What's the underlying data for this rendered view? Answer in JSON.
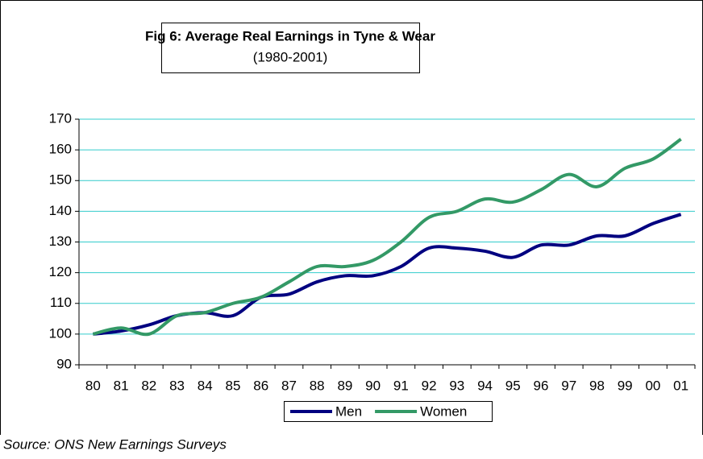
{
  "chart_data": {
    "type": "line",
    "title": "Fig 6: Average Real Earnings in Tyne & Wear",
    "subtitle": "(1980-2001)",
    "source": "Source: ONS New Earnings Surveys",
    "categories": [
      "80",
      "81",
      "82",
      "83",
      "84",
      "85",
      "86",
      "87",
      "88",
      "89",
      "90",
      "91",
      "92",
      "93",
      "94",
      "95",
      "96",
      "97",
      "98",
      "99",
      "00",
      "01"
    ],
    "series": [
      {
        "name": "Men",
        "color": "#000080",
        "values": [
          100,
          101,
          103,
          106,
          107,
          106,
          112,
          113,
          117,
          119,
          119,
          122,
          128,
          128,
          127,
          125,
          129,
          129,
          132,
          132,
          136,
          139
        ]
      },
      {
        "name": "Women",
        "color": "#339966",
        "values": [
          100,
          102,
          100,
          106,
          107,
          110,
          112,
          117,
          122,
          122,
          124,
          130,
          138,
          140,
          144,
          143,
          147,
          152,
          148,
          154,
          157,
          163.5
        ]
      }
    ],
    "ylim": [
      90,
      170
    ],
    "yticks": [
      90,
      100,
      110,
      120,
      130,
      140,
      150,
      160,
      170
    ],
    "grid": true,
    "legend": "bottom"
  }
}
